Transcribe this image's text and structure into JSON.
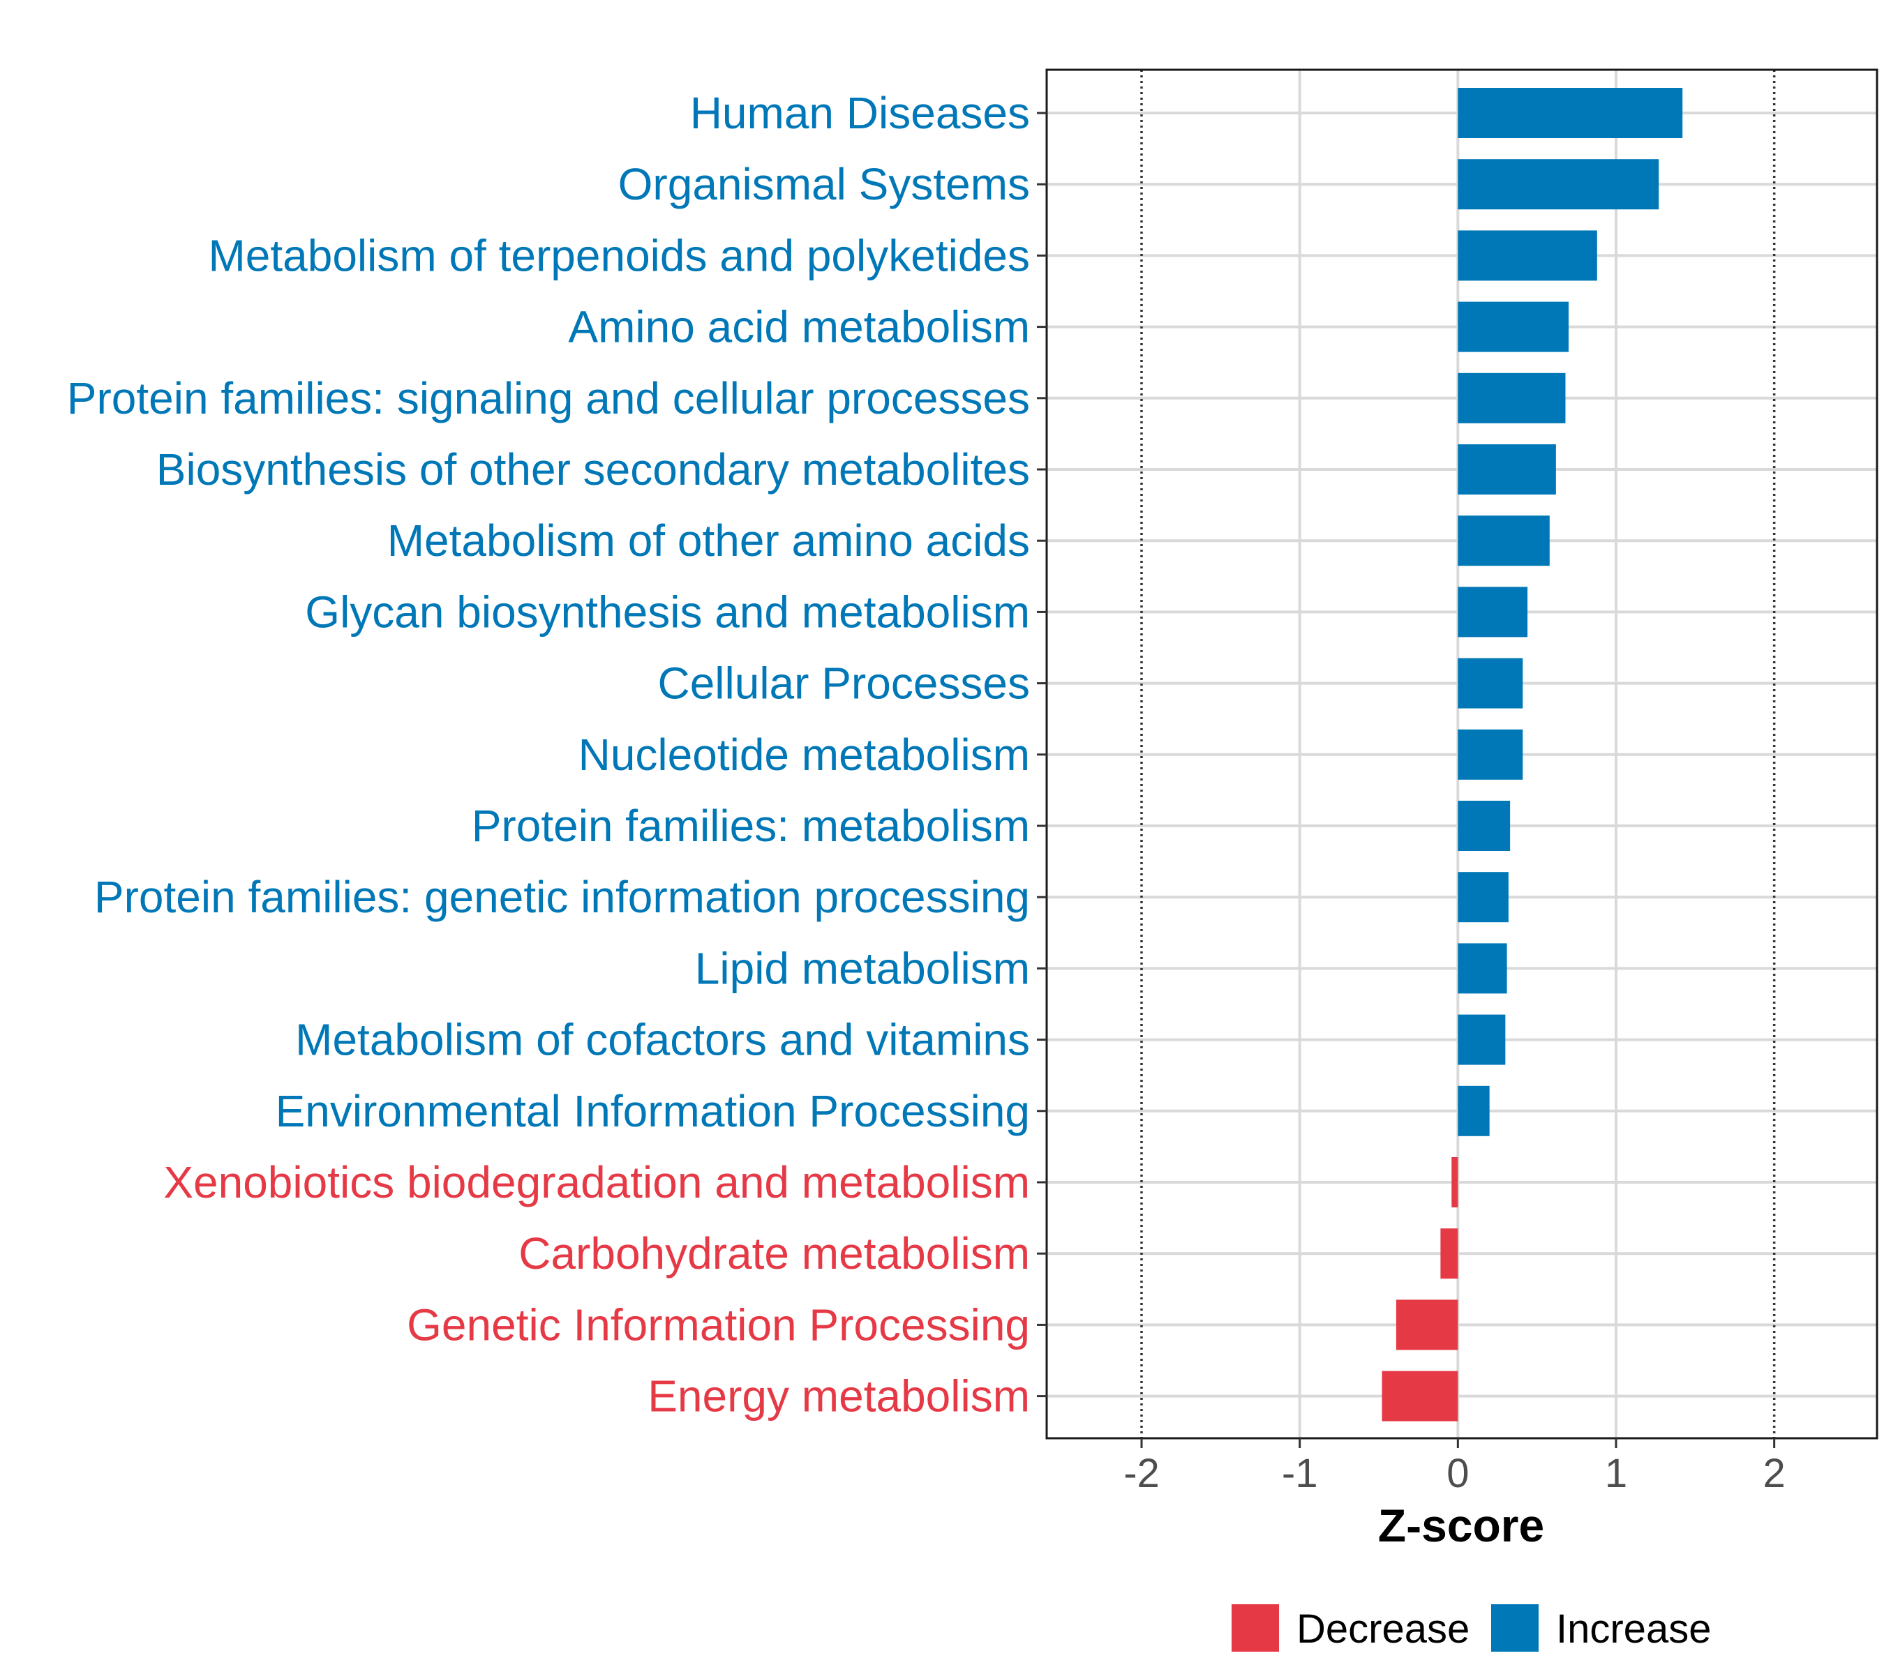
{
  "chart_data": {
    "type": "bar",
    "orientation": "horizontal",
    "title": "",
    "xlabel": "Z-score",
    "ylabel": "",
    "xlim": [
      -2.6,
      2.65
    ],
    "xticks": [
      -2,
      -1,
      0,
      1,
      2
    ],
    "xtick_labels": [
      "-2",
      "-1",
      "0",
      "1",
      "2"
    ],
    "reference_lines": [
      -2,
      2
    ],
    "grid": true,
    "legend_position": "bottom",
    "colors": {
      "Decrease": "#e63946",
      "Increase": "#0077b6"
    },
    "categories": [
      "Human Diseases",
      "Organismal Systems",
      "Metabolism of terpenoids and polyketides",
      "Amino acid metabolism",
      "Protein families: signaling and cellular processes",
      "Biosynthesis of other secondary metabolites",
      "Metabolism of other amino acids",
      "Glycan biosynthesis and metabolism",
      "Cellular Processes",
      "Nucleotide metabolism",
      "Protein families: metabolism",
      "Protein families: genetic information processing",
      "Lipid metabolism",
      "Metabolism of cofactors and vitamins",
      "Environmental Information Processing",
      "Xenobiotics biodegradation and metabolism",
      "Carbohydrate metabolism",
      "Genetic Information Processing",
      "Energy metabolism"
    ],
    "values": [
      1.42,
      1.27,
      0.88,
      0.7,
      0.68,
      0.62,
      0.58,
      0.44,
      0.41,
      0.41,
      0.33,
      0.32,
      0.31,
      0.3,
      0.2,
      -0.04,
      -0.11,
      -0.39,
      -0.48
    ],
    "groups": [
      "Increase",
      "Increase",
      "Increase",
      "Increase",
      "Increase",
      "Increase",
      "Increase",
      "Increase",
      "Increase",
      "Increase",
      "Increase",
      "Increase",
      "Increase",
      "Increase",
      "Increase",
      "Decrease",
      "Decrease",
      "Decrease",
      "Decrease"
    ],
    "legend": [
      {
        "label": "Decrease",
        "color": "#e63946"
      },
      {
        "label": "Increase",
        "color": "#0077b6"
      }
    ]
  }
}
